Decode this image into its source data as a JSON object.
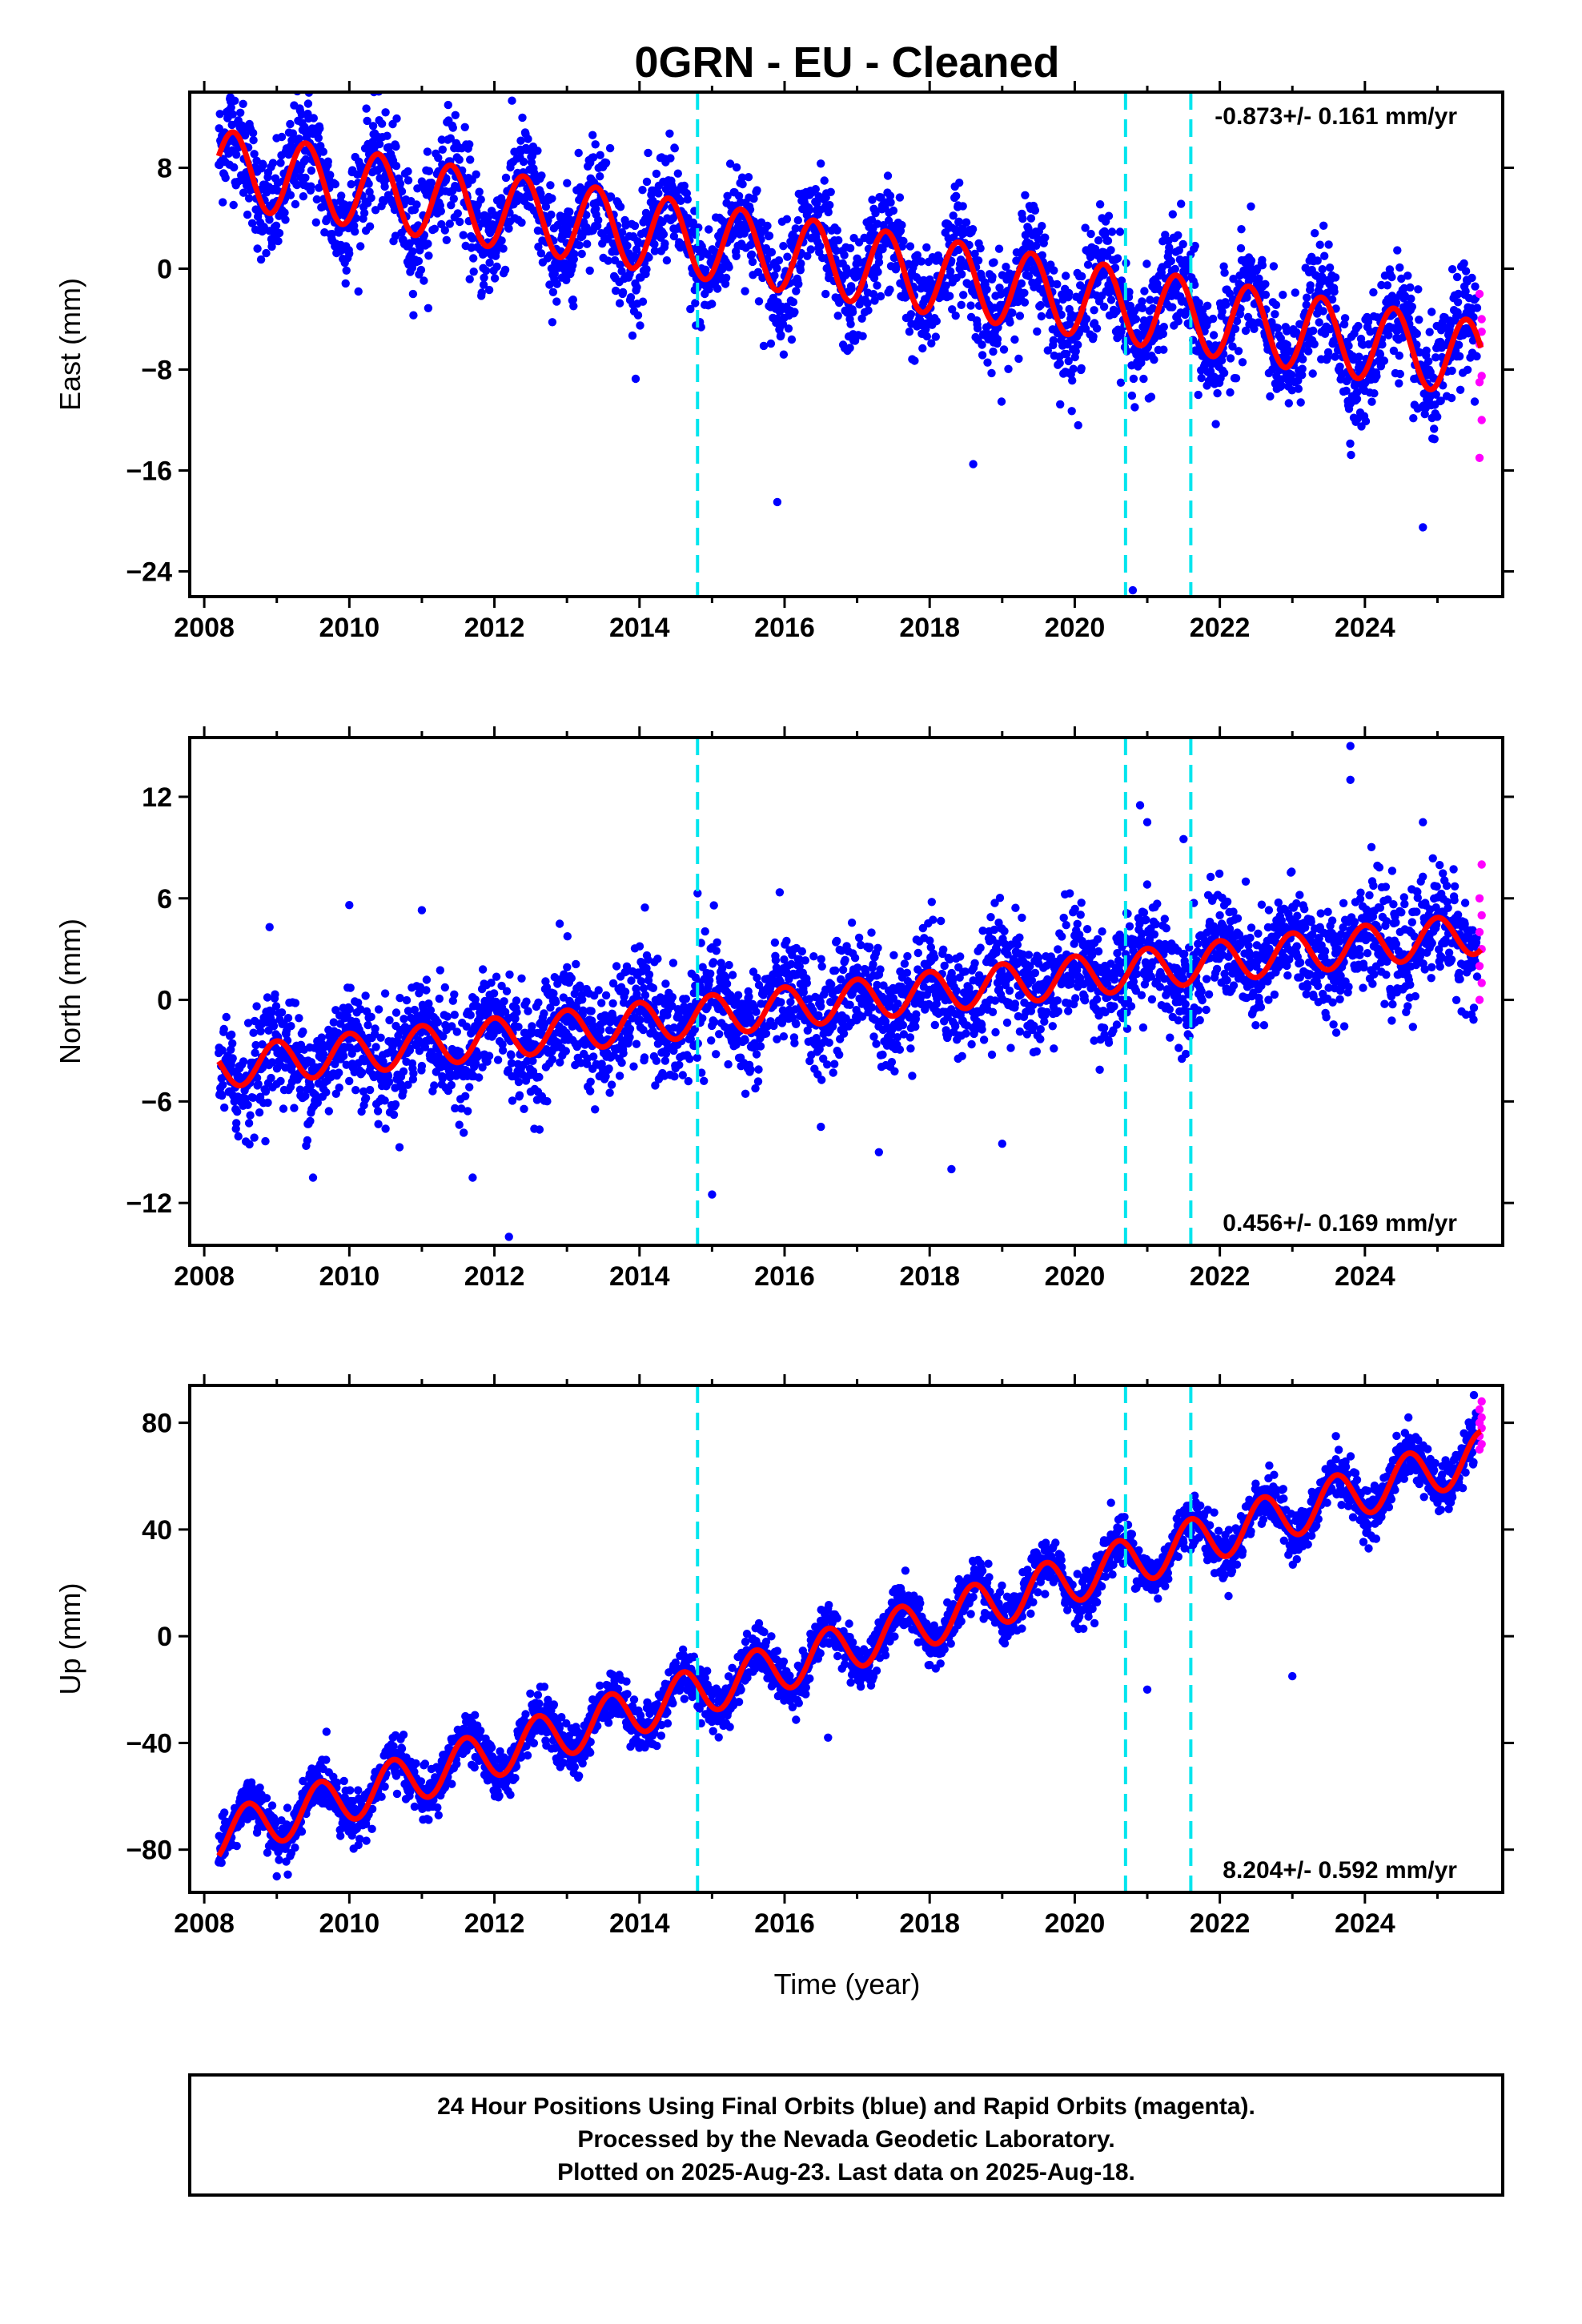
{
  "title": "0GRN  - EU - Cleaned",
  "xlabel": "Time (year)",
  "footer": [
    "24 Hour Positions Using Final Orbits (blue) and Rapid Orbits (magenta).",
    "Processed by the Nevada Geodetic Laboratory.",
    "Plotted on 2025-Aug-23. Last data on 2025-Aug-18."
  ],
  "colors": {
    "final": "#0000ff",
    "rapid": "#ff00ff",
    "model": "#ff0000",
    "steps": "#00e5ee",
    "frame": "#000000"
  },
  "chart_data": [
    {
      "type": "scatter",
      "ylabel": "East (mm)",
      "rate_text": "-0.873+/- 0.161 mm/yr",
      "x_ticks": [
        "2008",
        "2010",
        "2012",
        "2014",
        "2016",
        "2018",
        "2020",
        "2022",
        "2024"
      ],
      "xlim": [
        2007.8,
        2025.9
      ],
      "y_ticks": [
        "8",
        "0",
        "-8",
        "-16",
        "-24"
      ],
      "ylim": [
        -26,
        14
      ],
      "step_lines": [
        2014.8,
        2020.7,
        2021.6
      ],
      "model": {
        "start_year": 2008.2,
        "start_value": 8.0,
        "slope_per_yr": -0.873,
        "annual_amp": 3.0,
        "phase_peak": 0.4
      },
      "scatter": {
        "noise": 2.2,
        "rapid_values": [
          -2,
          -4,
          -6,
          -8.5,
          -9,
          -12,
          -15,
          -5
        ]
      },
      "series": [
        {
          "name": "Final Orbits",
          "values": [
            [
              2008.3,
              9.5
            ],
            [
              2008.5,
              11.2
            ],
            [
              2008.9,
              3.0
            ],
            [
              2009.4,
              10.8
            ],
            [
              2009.8,
              4.0
            ],
            [
              2010.4,
              9.0
            ],
            [
              2010.9,
              2.5
            ],
            [
              2011.4,
              8.0
            ],
            [
              2011.9,
              1.5
            ],
            [
              2012.4,
              7.5
            ],
            [
              2012.9,
              0.5
            ],
            [
              2013.4,
              6.5
            ],
            [
              2013.9,
              0.0
            ],
            [
              2014.4,
              5.5
            ],
            [
              2014.9,
              -2.0
            ],
            [
              2015.4,
              3.5
            ],
            [
              2015.9,
              -3.0
            ],
            [
              2016.4,
              2.5
            ],
            [
              2016.9,
              -4.0
            ],
            [
              2017.4,
              2.0
            ],
            [
              2017.9,
              -4.5
            ],
            [
              2018.4,
              1.5
            ],
            [
              2018.9,
              -5.0
            ],
            [
              2019.4,
              0.5
            ],
            [
              2019.9,
              -6.0
            ],
            [
              2020.4,
              -0.5
            ],
            [
              2020.9,
              -7.0
            ],
            [
              2021.4,
              -1.5
            ],
            [
              2021.9,
              -7.0
            ],
            [
              2022.4,
              -1.0
            ],
            [
              2022.9,
              -8.0
            ],
            [
              2023.4,
              -2.0
            ],
            [
              2023.9,
              -8.5
            ],
            [
              2024.4,
              -2.5
            ],
            [
              2024.9,
              -10.0
            ],
            [
              2025.4,
              -3.5
            ],
            [
              2015.9,
              -18.5
            ],
            [
              2020.8,
              -25.5
            ],
            [
              2024.8,
              -20.5
            ],
            [
              2018.6,
              -15.5
            ]
          ]
        }
      ]
    },
    {
      "type": "scatter",
      "ylabel": "North (mm)",
      "rate_text": "0.456+/- 0.169 mm/yr",
      "x_ticks": [
        "2008",
        "2010",
        "2012",
        "2014",
        "2016",
        "2018",
        "2020",
        "2022",
        "2024"
      ],
      "xlim": [
        2007.8,
        2025.9
      ],
      "y_ticks": [
        "12",
        "6",
        "0",
        "-6",
        "-12"
      ],
      "ylim": [
        -14.5,
        15.5
      ],
      "step_lines": [
        2014.8,
        2020.7,
        2021.6
      ],
      "model": {
        "start_year": 2008.2,
        "start_value": -4.0,
        "slope_per_yr": 0.456,
        "annual_amp": 1.2,
        "phase_peak": 0.0
      },
      "scatter": {
        "noise": 1.6,
        "rapid_values": [
          0,
          1,
          2,
          3,
          4,
          5,
          6,
          8
        ]
      },
      "series": [
        {
          "name": "Final Orbits",
          "values": [
            [
              2008.3,
              -3.5
            ],
            [
              2008.9,
              4.3
            ],
            [
              2009.5,
              -10.5
            ],
            [
              2010.0,
              5.6
            ],
            [
              2011.0,
              5.3
            ],
            [
              2011.7,
              -10.5
            ],
            [
              2012.2,
              -14.0
            ],
            [
              2012.9,
              4.5
            ],
            [
              2014.8,
              6.3
            ],
            [
              2015.0,
              -11.5
            ],
            [
              2016.5,
              -7.5
            ],
            [
              2017.3,
              -9.0
            ],
            [
              2018.3,
              -10.0
            ],
            [
              2019.0,
              -8.5
            ],
            [
              2020.9,
              11.5
            ],
            [
              2021.0,
              10.5
            ],
            [
              2021.5,
              9.5
            ],
            [
              2023.8,
              15.0
            ],
            [
              2023.8,
              13.0
            ],
            [
              2024.8,
              10.5
            ],
            [
              2022.0,
              5.0
            ],
            [
              2019.5,
              2.5
            ],
            [
              2017.0,
              1.5
            ],
            [
              2015.5,
              0.5
            ],
            [
              2013.0,
              -1.0
            ]
          ]
        }
      ]
    },
    {
      "type": "scatter",
      "ylabel": "Up (mm)",
      "rate_text": "8.204+/- 0.592 mm/yr",
      "x_ticks": [
        "2008",
        "2010",
        "2012",
        "2014",
        "2016",
        "2018",
        "2020",
        "2022",
        "2024"
      ],
      "xlim": [
        2007.8,
        2025.9
      ],
      "y_ticks": [
        "80",
        "40",
        "0",
        "-40",
        "-80"
      ],
      "ylim": [
        -96,
        94
      ],
      "step_lines": [
        2014.8,
        2020.7,
        2021.6
      ],
      "model": {
        "start_year": 2008.2,
        "start_value": -75.0,
        "slope_per_yr": 8.204,
        "annual_amp": 9.0,
        "phase_peak": 0.6
      },
      "scatter": {
        "noise": 4.5,
        "rapid_values": [
          70,
          72,
          75,
          78,
          80,
          82,
          85,
          88
        ]
      },
      "series": [
        {
          "name": "Final Orbits",
          "values": [
            [
              2008.3,
              -78
            ],
            [
              2008.6,
              -55
            ],
            [
              2009.0,
              -90
            ],
            [
              2009.6,
              -48
            ],
            [
              2010.0,
              -68
            ],
            [
              2010.6,
              -38
            ],
            [
              2011.0,
              -58
            ],
            [
              2011.6,
              -30
            ],
            [
              2012.0,
              -50
            ],
            [
              2012.6,
              -22
            ],
            [
              2013.0,
              -42
            ],
            [
              2013.6,
              -14
            ],
            [
              2014.0,
              -32
            ],
            [
              2014.6,
              -5
            ],
            [
              2015.0,
              -22
            ],
            [
              2015.6,
              3
            ],
            [
              2016.0,
              -14
            ],
            [
              2016.6,
              -38
            ],
            [
              2017.6,
              18
            ],
            [
              2018.0,
              -6
            ],
            [
              2018.6,
              28
            ],
            [
              2019.0,
              4
            ],
            [
              2019.6,
              35
            ],
            [
              2020.0,
              12
            ],
            [
              2020.5,
              50
            ],
            [
              2021.0,
              -20
            ],
            [
              2021.6,
              45
            ],
            [
              2022.0,
              30
            ],
            [
              2022.6,
              55
            ],
            [
              2023.0,
              -15
            ],
            [
              2023.6,
              75
            ],
            [
              2024.0,
              48
            ],
            [
              2024.6,
              82
            ],
            [
              2025.0,
              50
            ]
          ]
        }
      ]
    }
  ]
}
